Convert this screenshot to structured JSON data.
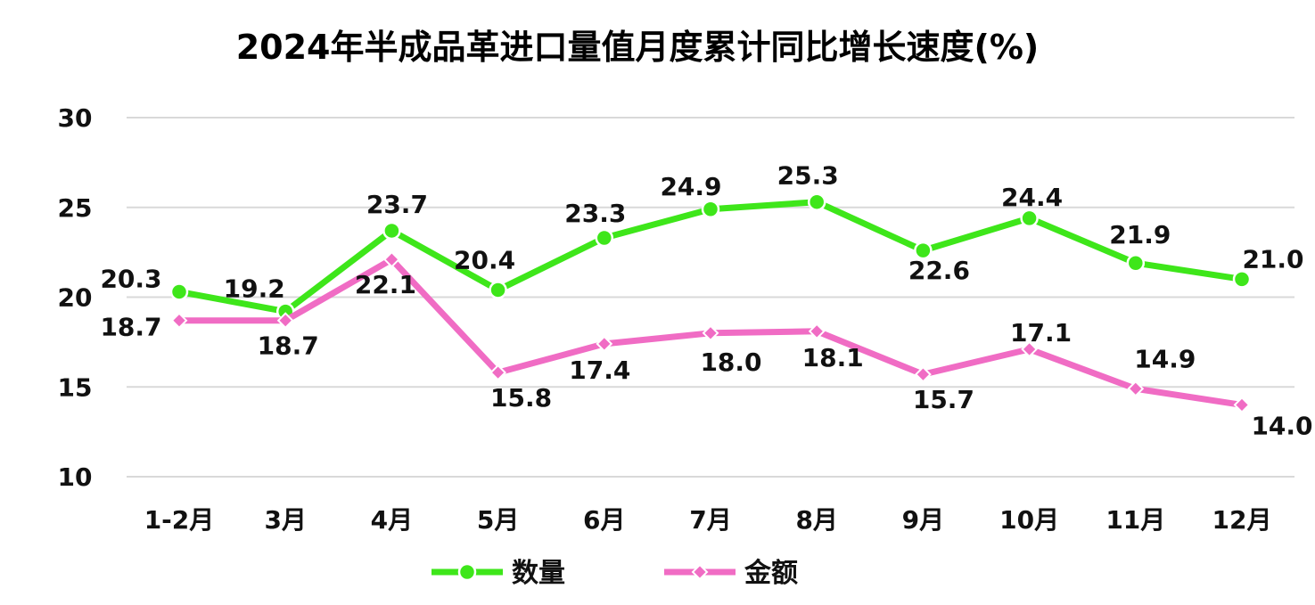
{
  "chart_data": {
    "type": "line",
    "title": "2024年半成品革进口量值月度累计同比增长速度(%)",
    "categories": [
      "1-2月",
      "3月",
      "4月",
      "5月",
      "6月",
      "7月",
      "8月",
      "9月",
      "10月",
      "11月",
      "12月"
    ],
    "series": [
      {
        "name": "数量",
        "color": "#3ee61a",
        "marker": "circle",
        "values": [
          20.3,
          19.2,
          23.7,
          20.4,
          23.3,
          24.9,
          25.3,
          22.6,
          24.4,
          21.9,
          21.0
        ],
        "labels": [
          "20.3",
          "19.2",
          "23.7",
          "20.4",
          "23.3",
          "24.9",
          "25.3",
          "22.6",
          "24.4",
          "21.9",
          "21.0"
        ]
      },
      {
        "name": "金额",
        "color": "#f06cc4",
        "marker": "diamond",
        "values": [
          18.7,
          18.7,
          22.1,
          15.8,
          17.4,
          18.0,
          18.1,
          15.7,
          17.1,
          14.9,
          14.0
        ],
        "labels": [
          "18.7",
          "18.7",
          "22.1",
          "15.8",
          "17.4",
          "18.0",
          "18.1",
          "15.7",
          "17.1",
          "14.9",
          "14.0"
        ]
      }
    ],
    "yticks": [
      "10",
      "15",
      "20",
      "25",
      "30"
    ],
    "ylim": [
      10,
      30
    ],
    "xlabel": "",
    "ylabel": "",
    "grid": true,
    "legend": "bottom"
  }
}
